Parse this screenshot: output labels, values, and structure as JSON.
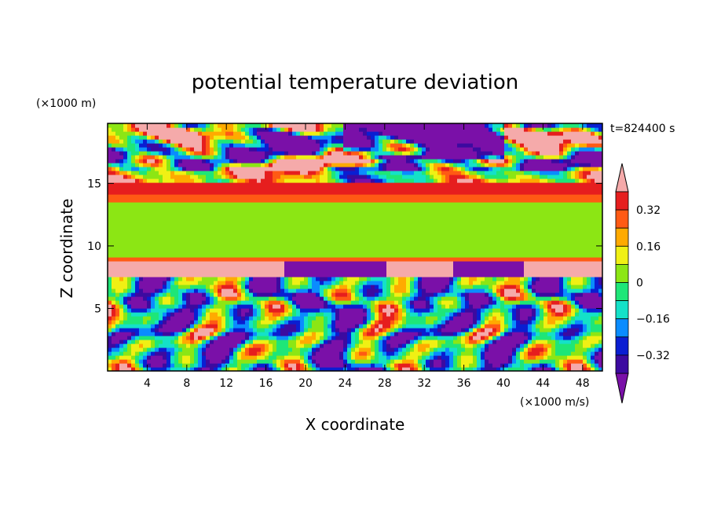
{
  "chart_data": {
    "type": "heatmap",
    "title": "potential temperature deviation",
    "xlabel": "X coordinate",
    "ylabel": "Z coordinate",
    "x_units": "(×1000 m/s)",
    "y_units": "(×1000 m)",
    "time_label": "t=824400 s",
    "xlim": [
      0,
      50
    ],
    "ylim": [
      0,
      19.8
    ],
    "x_ticks": [
      4,
      8,
      12,
      16,
      20,
      24,
      28,
      32,
      36,
      40,
      44,
      48
    ],
    "y_ticks": [
      5,
      10,
      15
    ],
    "colorbar": {
      "levels": [
        -0.4,
        -0.32,
        -0.24,
        -0.16,
        -0.08,
        0,
        0.08,
        0.16,
        0.24,
        0.32,
        0.4
      ],
      "labels": [
        "0.32",
        "0.16",
        "0",
        "−0.16",
        "−0.32"
      ],
      "label_values": [
        0.32,
        0.16,
        0,
        -0.16,
        -0.32
      ],
      "colors": [
        "#7a10a8",
        "#3c0aa0",
        "#0a1ed2",
        "#0a8cff",
        "#14e1c8",
        "#1ee678",
        "#8ce614",
        "#f0f014",
        "#ffaa00",
        "#ff5a14",
        "#e61e1e",
        "#f5aaaa"
      ],
      "extend": "both"
    },
    "layers": [
      {
        "z_range": [
          15,
          19.8
        ],
        "description_values": "upper layer: mostly ≥0.4 with patches ≤-0.4"
      },
      {
        "z_range": [
          13.5,
          15
        ],
        "description_values": "0.24 to 0.4"
      },
      {
        "z_range": [
          9,
          13.5
        ],
        "description_values": "about 0 to 0.08"
      },
      {
        "z_range": [
          7.5,
          9
        ],
        "description_values": "≥0.4 and ≤-0.4 strips"
      },
      {
        "z_range": [
          0,
          7.5
        ],
        "description_values": "turbulent, -0.4 to 0.4"
      }
    ]
  }
}
